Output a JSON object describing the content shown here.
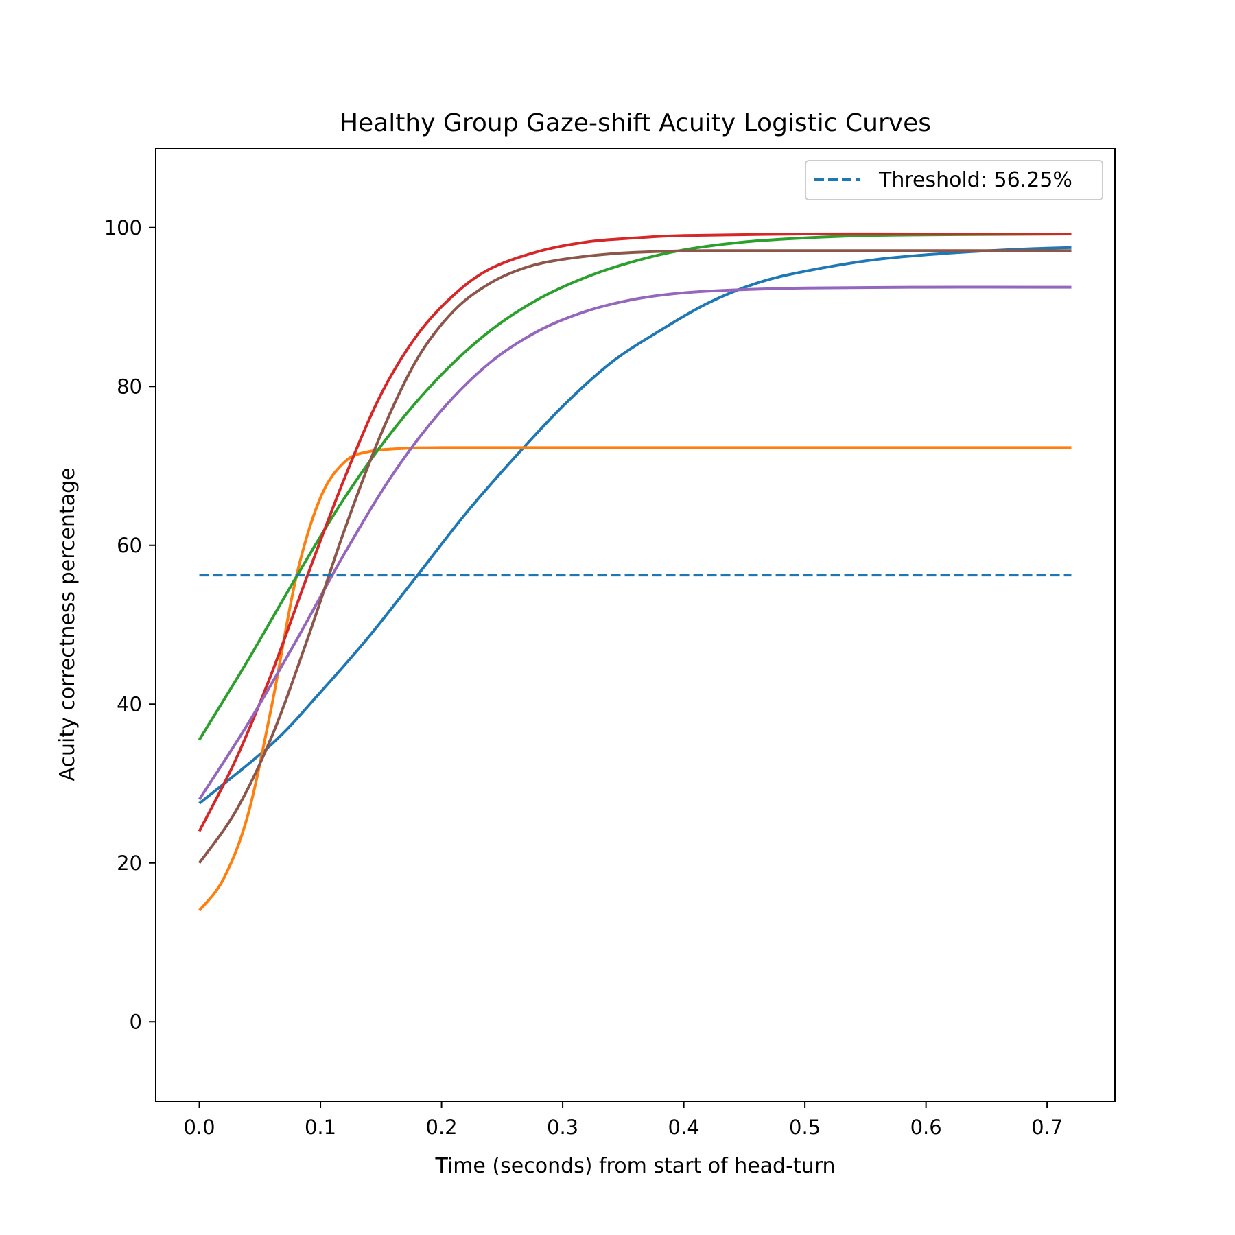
{
  "chart_data": {
    "type": "line",
    "title": "Healthy Group Gaze-shift Acuity Logistic Curves",
    "xlabel": "Time (seconds) from start of head-turn",
    "ylabel": "Acuity correctness percentage",
    "xlim": [
      -0.036,
      0.756
    ],
    "ylim": [
      -10,
      110
    ],
    "xticks": [
      0.0,
      0.1,
      0.2,
      0.3,
      0.4,
      0.5,
      0.6,
      0.7
    ],
    "xtick_labels": [
      "0.0",
      "0.1",
      "0.2",
      "0.3",
      "0.4",
      "0.5",
      "0.6",
      "0.7"
    ],
    "yticks": [
      0,
      20,
      40,
      60,
      80,
      100
    ],
    "ytick_labels": [
      "0",
      "20",
      "40",
      "60",
      "80",
      "100"
    ],
    "grid": false,
    "legend": {
      "placement": "top-right",
      "entries": [
        "Threshold: 56.25%"
      ]
    },
    "threshold": {
      "label": "Threshold: 56.25%",
      "value": 56.25,
      "x": [
        0.0,
        0.72
      ],
      "color": "#1f77b4",
      "style": "dashed"
    },
    "series": [
      {
        "color": "#1f77b4",
        "x": [
          0.0,
          0.06,
          0.1,
          0.14,
          0.18,
          0.22,
          0.26,
          0.3,
          0.34,
          0.38,
          0.42,
          0.46,
          0.5,
          0.56,
          0.62,
          0.68,
          0.72
        ],
        "y": [
          27.5,
          35.0,
          41.5,
          48.5,
          56.2,
          64.0,
          71.0,
          77.5,
          83.0,
          87.0,
          90.5,
          93.0,
          94.5,
          96.0,
          96.8,
          97.3,
          97.5
        ]
      },
      {
        "color": "#ff7f0e",
        "x": [
          0.0,
          0.02,
          0.04,
          0.06,
          0.08,
          0.1,
          0.12,
          0.14,
          0.17,
          0.2,
          0.3,
          0.4,
          0.5,
          0.6,
          0.72
        ],
        "y": [
          14.0,
          18.0,
          26.0,
          40.0,
          56.0,
          66.0,
          70.5,
          71.8,
          72.2,
          72.3,
          72.3,
          72.3,
          72.3,
          72.3,
          72.3
        ]
      },
      {
        "color": "#2ca02c",
        "x": [
          0.0,
          0.04,
          0.08,
          0.12,
          0.16,
          0.2,
          0.24,
          0.28,
          0.32,
          0.36,
          0.4,
          0.45,
          0.5,
          0.55,
          0.6,
          0.72
        ],
        "y": [
          35.5,
          45.5,
          56.0,
          66.0,
          74.5,
          81.5,
          87.0,
          91.0,
          93.8,
          95.8,
          97.2,
          98.2,
          98.7,
          99.0,
          99.1,
          99.2
        ]
      },
      {
        "color": "#d62728",
        "x": [
          0.0,
          0.03,
          0.06,
          0.09,
          0.12,
          0.15,
          0.18,
          0.21,
          0.24,
          0.28,
          0.32,
          0.36,
          0.4,
          0.5,
          0.6,
          0.72
        ],
        "y": [
          24.0,
          33.0,
          44.0,
          56.5,
          68.5,
          79.0,
          86.5,
          91.5,
          94.8,
          97.0,
          98.2,
          98.7,
          99.0,
          99.2,
          99.2,
          99.2
        ]
      },
      {
        "color": "#9467bd",
        "x": [
          0.0,
          0.04,
          0.08,
          0.12,
          0.16,
          0.2,
          0.24,
          0.28,
          0.32,
          0.36,
          0.4,
          0.45,
          0.5,
          0.6,
          0.72
        ],
        "y": [
          28.0,
          37.5,
          48.0,
          59.0,
          69.0,
          77.0,
          83.0,
          87.0,
          89.5,
          91.0,
          91.8,
          92.2,
          92.4,
          92.5,
          92.5
        ]
      },
      {
        "color": "#8c564b",
        "x": [
          0.0,
          0.03,
          0.06,
          0.09,
          0.12,
          0.15,
          0.18,
          0.21,
          0.24,
          0.27,
          0.3,
          0.34,
          0.38,
          0.42,
          0.5,
          0.6,
          0.72
        ],
        "y": [
          20.0,
          26.5,
          36.0,
          48.5,
          62.0,
          74.0,
          83.5,
          89.5,
          93.0,
          95.0,
          96.0,
          96.7,
          97.0,
          97.1,
          97.1,
          97.1,
          97.1
        ]
      }
    ]
  }
}
